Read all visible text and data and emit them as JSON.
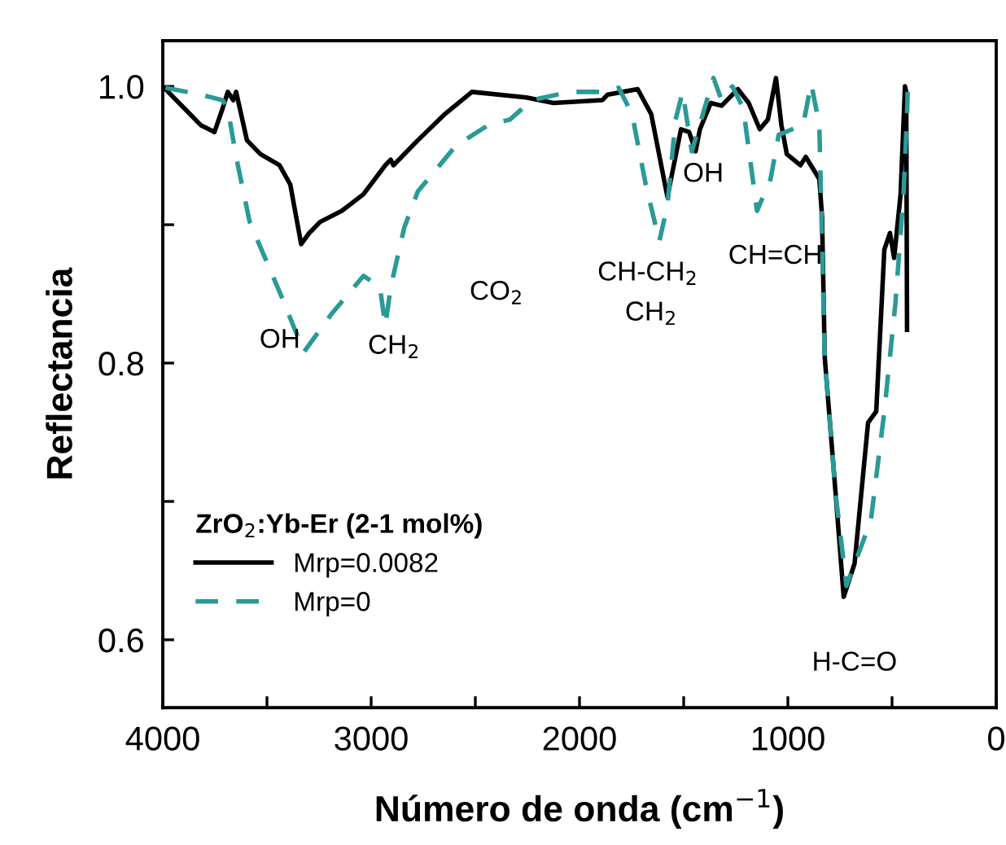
{
  "chart_data": {
    "type": "line",
    "xlabel": "Número de onda (cm$^{−1}$)",
    "ylabel": "Reflectancia",
    "legend_title": "ZrO$_{2}$:Yb-Er (2-1 mol%)",
    "xlim": [
      4000,
      0
    ],
    "ylim": [
      0.551,
      1.033
    ],
    "xticks": [
      4000,
      {
        "value": 3500,
        "label": null
      },
      3000,
      {
        "value": 2500,
        "label": null
      },
      2000,
      {
        "value": 1500,
        "label": null
      },
      1000,
      {
        "value": 500,
        "label": null
      },
      0
    ],
    "yticks": [
      {
        "value": 0.6,
        "label": "0.6"
      },
      {
        "value": 0.7,
        "label": null
      },
      {
        "value": 0.8,
        "label": "0.8"
      },
      {
        "value": 0.9,
        "label": null
      },
      {
        "value": 1.0,
        "label": "1.0"
      }
    ],
    "grid": false,
    "legend": "bottom left",
    "series": [
      {
        "name": "Mrp=0.0082",
        "color": "#000000",
        "line_style": "solid",
        "x": [
          3987,
          3896,
          3818,
          3752,
          3713,
          3688,
          3662,
          3648,
          3596,
          3531,
          3440,
          3388,
          3336,
          3297,
          3245,
          3141,
          3037,
          2932,
          2906,
          2893,
          2776,
          2646,
          2516,
          2255,
          2125,
          1891,
          1865,
          1721,
          1656,
          1578,
          1513,
          1474,
          1443,
          1422,
          1370,
          1318,
          1240,
          1188,
          1135,
          1096,
          1057,
          1031,
          1005,
          940,
          914,
          849,
          836,
          823,
          771,
          732,
          680,
          615,
          576,
          537,
          510,
          490,
          459,
          438,
          432,
          428
        ],
        "values": [
          0.998,
          0.984,
          0.972,
          0.967,
          0.984,
          0.996,
          0.99,
          0.996,
          0.961,
          0.951,
          0.943,
          0.929,
          0.886,
          0.894,
          0.902,
          0.91,
          0.922,
          0.943,
          0.947,
          0.943,
          0.961,
          0.98,
          0.996,
          0.992,
          0.988,
          0.99,
          0.994,
          0.998,
          0.98,
          0.92,
          0.969,
          0.967,
          0.953,
          0.969,
          0.988,
          0.986,
          0.998,
          0.988,
          0.969,
          0.976,
          1.006,
          0.972,
          0.951,
          0.943,
          0.949,
          0.933,
          0.906,
          0.804,
          0.706,
          0.631,
          0.655,
          0.757,
          0.765,
          0.882,
          0.894,
          0.876,
          0.922,
          1.0,
          0.996,
          0.824
        ]
      },
      {
        "name": "Mrp=0",
        "color": "#2a9a96",
        "line_style": "dashed",
        "x": [
          3987,
          3818,
          3713,
          3688,
          3648,
          3583,
          3427,
          3323,
          3193,
          3037,
          2958,
          2932,
          2906,
          2841,
          2776,
          2594,
          2438,
          2334,
          2229,
          2047,
          1891,
          1812,
          1748,
          1682,
          1617,
          1578,
          1539,
          1505,
          1461,
          1357,
          1318,
          1266,
          1214,
          1148,
          1083,
          1044,
          979,
          927,
          888,
          849,
          823,
          771,
          719,
          602,
          537,
          484,
          445,
          428,
          425
        ],
        "values": [
          0.999,
          0.994,
          0.99,
          0.984,
          0.949,
          0.902,
          0.847,
          0.808,
          0.835,
          0.863,
          0.855,
          0.827,
          0.855,
          0.898,
          0.924,
          0.957,
          0.972,
          0.976,
          0.99,
          0.996,
          0.996,
          0.999,
          0.98,
          0.929,
          0.888,
          0.914,
          0.976,
          0.996,
          0.953,
          1.006,
          0.99,
          1.0,
          0.984,
          0.91,
          0.933,
          0.965,
          0.969,
          0.972,
          1.002,
          0.972,
          0.804,
          0.706,
          0.639,
          0.686,
          0.765,
          0.843,
          0.922,
          0.98,
          0.996
        ]
      }
    ],
    "annotations": [
      "OH",
      "CH$_{2}$",
      "CO$_{2}$",
      "CH-CH$_{2}$",
      "CH$_{2}$",
      "OH",
      "CH=CH",
      "H-C=O"
    ]
  }
}
